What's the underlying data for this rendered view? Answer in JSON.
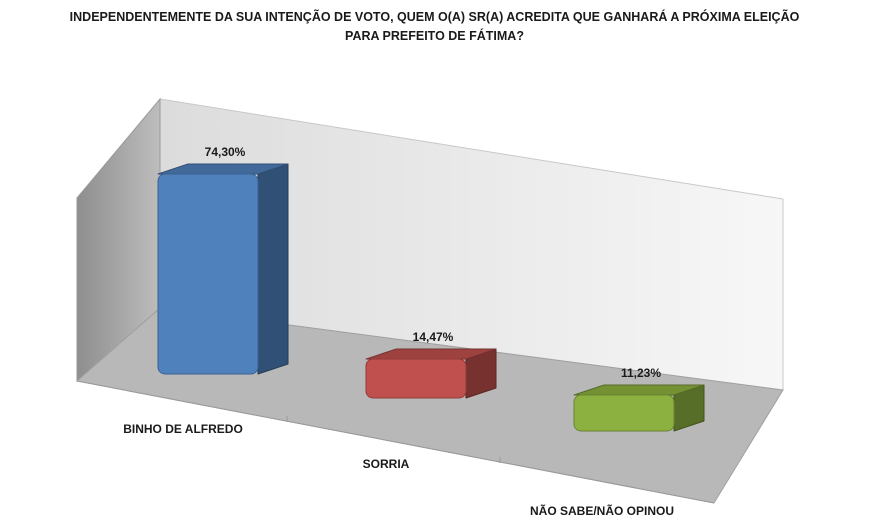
{
  "chart_data": {
    "type": "bar",
    "title_lines": [
      "INDEPENDENTEMENTE DA SUA INTENÇÃO DE VOTO, QUEM O(A) SR(A) ACREDITA QUE GANHARÁ A PRÓXIMA ELEIÇÃO",
      "PARA PREFEITO DE FÁTIMA?"
    ],
    "categories": [
      "BINHO DE ALFREDO",
      "SORRIA",
      "NÃO SABE/NÃO OPINOU"
    ],
    "values": [
      74.3,
      14.47,
      11.23
    ],
    "value_labels": [
      "74,30%",
      "14,47%",
      "11,23%"
    ],
    "colors": [
      "#4f81bd",
      "#c0504d",
      "#8db140"
    ],
    "ylim": [
      0,
      80
    ],
    "grid": false,
    "legend": "none"
  }
}
